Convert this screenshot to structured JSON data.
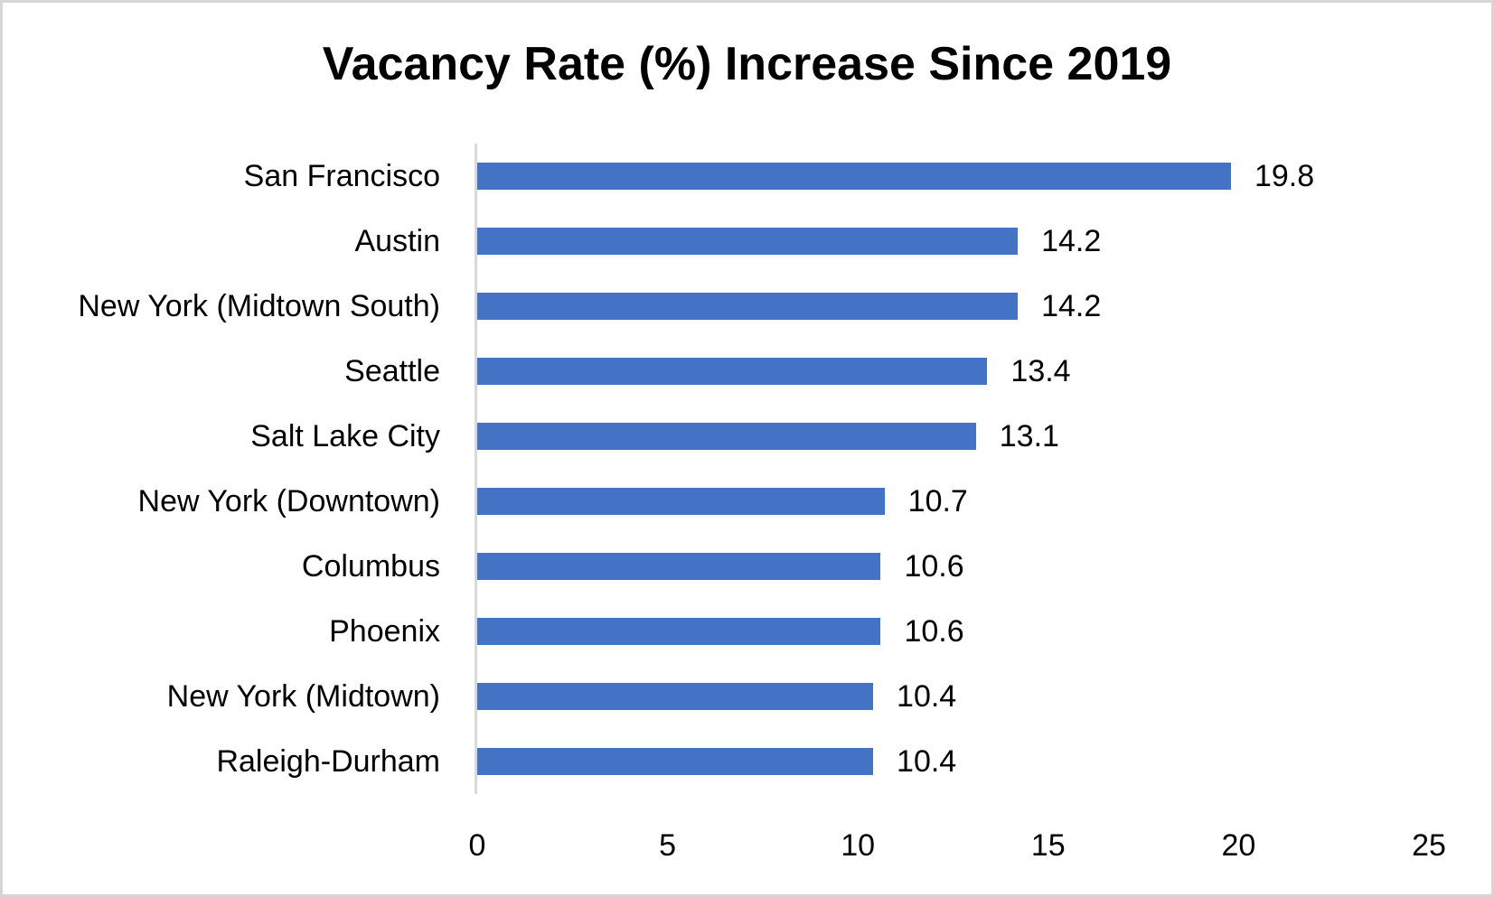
{
  "frame": {
    "background": "#ffffff",
    "border_color": "#d6d6d6"
  },
  "chart_data": {
    "type": "bar",
    "orientation": "horizontal",
    "title": "Vacancy Rate (%) Increase Since 2019",
    "categories": [
      "San Francisco",
      "Austin",
      "New York (Midtown South)",
      "Seattle",
      "Salt Lake City",
      "New York (Downtown)",
      "Columbus",
      "Phoenix",
      "New York (Midtown)",
      "Raleigh-Durham"
    ],
    "values": [
      19.8,
      14.2,
      14.2,
      13.4,
      13.1,
      10.7,
      10.6,
      10.6,
      10.4,
      10.4
    ],
    "data_labels": [
      "19.8",
      "14.2",
      "14.2",
      "13.4",
      "13.1",
      "10.7",
      "10.6",
      "10.6",
      "10.4",
      "10.4"
    ],
    "xlabel": "",
    "ylabel": "",
    "xlim": [
      0,
      25
    ],
    "x_ticks": [
      "0",
      "5",
      "10",
      "15",
      "20",
      "25"
    ],
    "grid": false,
    "legend": false,
    "bar_color": "#4472C4",
    "axis_line_color": "#D9D9D9",
    "text_color": "#000000"
  }
}
